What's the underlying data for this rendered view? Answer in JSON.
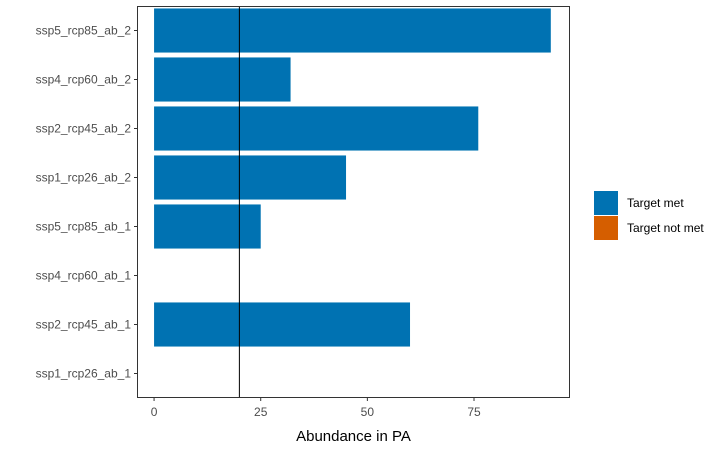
{
  "chart_data": {
    "type": "bar",
    "orientation": "horizontal",
    "title": "",
    "xlabel": "Abundance in PA",
    "ylabel": "",
    "xlim": [
      -4,
      97.5
    ],
    "xticks": [
      0,
      25,
      50,
      75
    ],
    "xtick_labels": [
      "0",
      "25",
      "50",
      "75"
    ],
    "grid": false,
    "reference_line": {
      "x": 20,
      "color": "#000000"
    },
    "categories": [
      "ssp5_rcp85_ab_2",
      "ssp4_rcp60_ab_2",
      "ssp2_rcp45_ab_2",
      "ssp1_rcp26_ab_2",
      "ssp5_rcp85_ab_1",
      "ssp4_rcp60_ab_1",
      "ssp2_rcp45_ab_1",
      "ssp1_rcp26_ab_1"
    ],
    "values": [
      93,
      32,
      76,
      45,
      25,
      0,
      60,
      0
    ],
    "status": [
      "Target met",
      "Target met",
      "Target met",
      "Target met",
      "Target met",
      "Target met",
      "Target met",
      "Target met"
    ],
    "legend": {
      "placement": "right",
      "entries": [
        {
          "label": "Target met",
          "color": "#0072B2"
        },
        {
          "label": "Target not met",
          "color": "#D55E00"
        }
      ]
    }
  }
}
